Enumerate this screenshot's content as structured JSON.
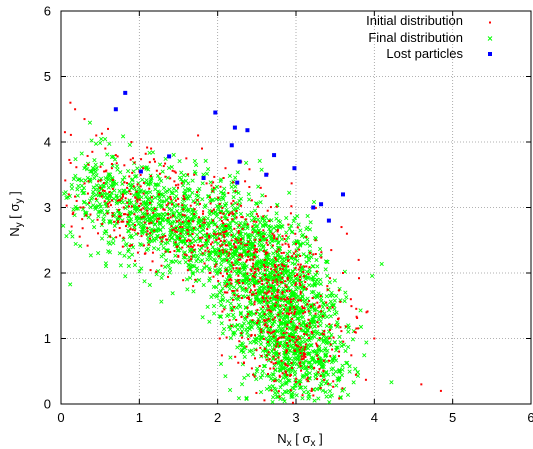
{
  "chart_data": {
    "type": "scatter",
    "xlim": [
      0,
      6
    ],
    "ylim": [
      0,
      6
    ],
    "x_ticks": [
      "0",
      "1",
      "2",
      "3",
      "4",
      "5",
      "6"
    ],
    "y_ticks": [
      "0",
      "1",
      "2",
      "3",
      "4",
      "5",
      "6"
    ],
    "grid": true,
    "legend_position": "top-right",
    "xlabel": {
      "main": "N",
      "sub": "x",
      "unit_open": " [ σ",
      "unit_sub": "x",
      "unit_close": " ]"
    },
    "ylabel": {
      "main": "N",
      "sub": "y",
      "unit_open": " [ σ",
      "unit_sub": "y",
      "unit_close": " ]"
    },
    "series": [
      {
        "name": "Initial distribution",
        "marker": "dot",
        "color": "#ff0000",
        "values": [
          [
            0.05,
            4.15
          ],
          [
            0.12,
            4.6
          ],
          [
            0.18,
            4.5
          ],
          [
            0.3,
            4.35
          ],
          [
            0.45,
            4.1
          ],
          [
            0.6,
            4.2
          ],
          [
            0.9,
            4.0
          ],
          [
            1.15,
            3.9
          ],
          [
            1.6,
            3.75
          ],
          [
            1.75,
            4.1
          ],
          [
            2.1,
            3.6
          ],
          [
            2.35,
            3.4
          ],
          [
            0.1,
            3.2
          ],
          [
            0.2,
            3.1
          ],
          [
            0.35,
            3.4
          ],
          [
            0.5,
            3.3
          ],
          [
            0.65,
            3.6
          ],
          [
            0.8,
            3.0
          ],
          [
            0.95,
            3.15
          ],
          [
            1.1,
            2.95
          ],
          [
            1.25,
            3.2
          ],
          [
            1.4,
            2.85
          ],
          [
            1.55,
            2.7
          ],
          [
            1.7,
            2.9
          ],
          [
            1.85,
            2.5
          ],
          [
            2.0,
            2.6
          ],
          [
            2.15,
            2.3
          ],
          [
            2.3,
            2.45
          ],
          [
            2.45,
            2.1
          ],
          [
            2.6,
            2.2
          ],
          [
            2.75,
            1.9
          ],
          [
            2.85,
            1.6
          ],
          [
            2.95,
            1.3
          ],
          [
            3.05,
            1.0
          ],
          [
            3.1,
            0.7
          ],
          [
            3.15,
            0.4
          ],
          [
            3.2,
            0.2
          ],
          [
            3.3,
            1.5
          ],
          [
            3.4,
            1.8
          ],
          [
            3.5,
            1.2
          ],
          [
            3.6,
            2.0
          ],
          [
            3.7,
            1.6
          ],
          [
            3.8,
            2.2
          ],
          [
            3.9,
            1.4
          ],
          [
            4.0,
            1.0
          ],
          [
            3.0,
            0.9
          ],
          [
            2.95,
            0.55
          ],
          [
            3.05,
            0.3
          ],
          [
            2.9,
            2.1
          ],
          [
            2.7,
            2.6
          ],
          [
            2.5,
            2.9
          ],
          [
            2.2,
            3.1
          ],
          [
            1.95,
            3.3
          ],
          [
            1.7,
            3.5
          ],
          [
            1.45,
            3.55
          ],
          [
            1.2,
            3.7
          ],
          [
            0.7,
            3.8
          ],
          [
            0.4,
            3.85
          ],
          [
            0.25,
            3.0
          ],
          [
            0.15,
            2.9
          ],
          [
            1.9,
            2.0
          ],
          [
            2.1,
            1.8
          ],
          [
            2.4,
            1.6
          ],
          [
            2.65,
            1.3
          ],
          [
            3.25,
            2.5
          ],
          [
            3.45,
            2.35
          ],
          [
            3.65,
            2.6
          ],
          [
            3.35,
            0.5
          ],
          [
            3.55,
            0.8
          ],
          [
            3.75,
            1.1
          ],
          [
            4.6,
            0.3
          ],
          [
            4.85,
            0.2
          ],
          [
            2.55,
            3.3
          ],
          [
            2.3,
            3.7
          ],
          [
            1.8,
            3.9
          ],
          [
            1.0,
            3.55
          ],
          [
            0.55,
            3.55
          ],
          [
            3.1,
            1.95
          ],
          [
            3.2,
            1.1
          ],
          [
            2.8,
            1.5
          ],
          [
            2.05,
            2.85
          ],
          [
            1.5,
            3.05
          ],
          [
            1.3,
            2.55
          ],
          [
            2.6,
            1.7
          ]
        ]
      },
      {
        "name": "Final distribution",
        "marker": "x",
        "color": "#00ff00",
        "values": []
      },
      {
        "name": "Lost particles",
        "marker": "square",
        "color": "#0000ff",
        "values": [
          [
            0.82,
            4.75
          ],
          [
            0.7,
            4.5
          ],
          [
            1.97,
            4.45
          ],
          [
            2.22,
            4.22
          ],
          [
            2.38,
            4.18
          ],
          [
            2.18,
            3.95
          ],
          [
            1.38,
            3.78
          ],
          [
            2.28,
            3.7
          ],
          [
            2.25,
            3.38
          ],
          [
            2.72,
            3.8
          ],
          [
            1.82,
            3.45
          ],
          [
            2.62,
            3.5
          ],
          [
            3.32,
            3.05
          ],
          [
            3.22,
            3.0
          ],
          [
            3.6,
            3.2
          ],
          [
            3.42,
            2.8
          ],
          [
            1.02,
            3.55
          ],
          [
            2.98,
            3.6
          ]
        ]
      }
    ]
  }
}
